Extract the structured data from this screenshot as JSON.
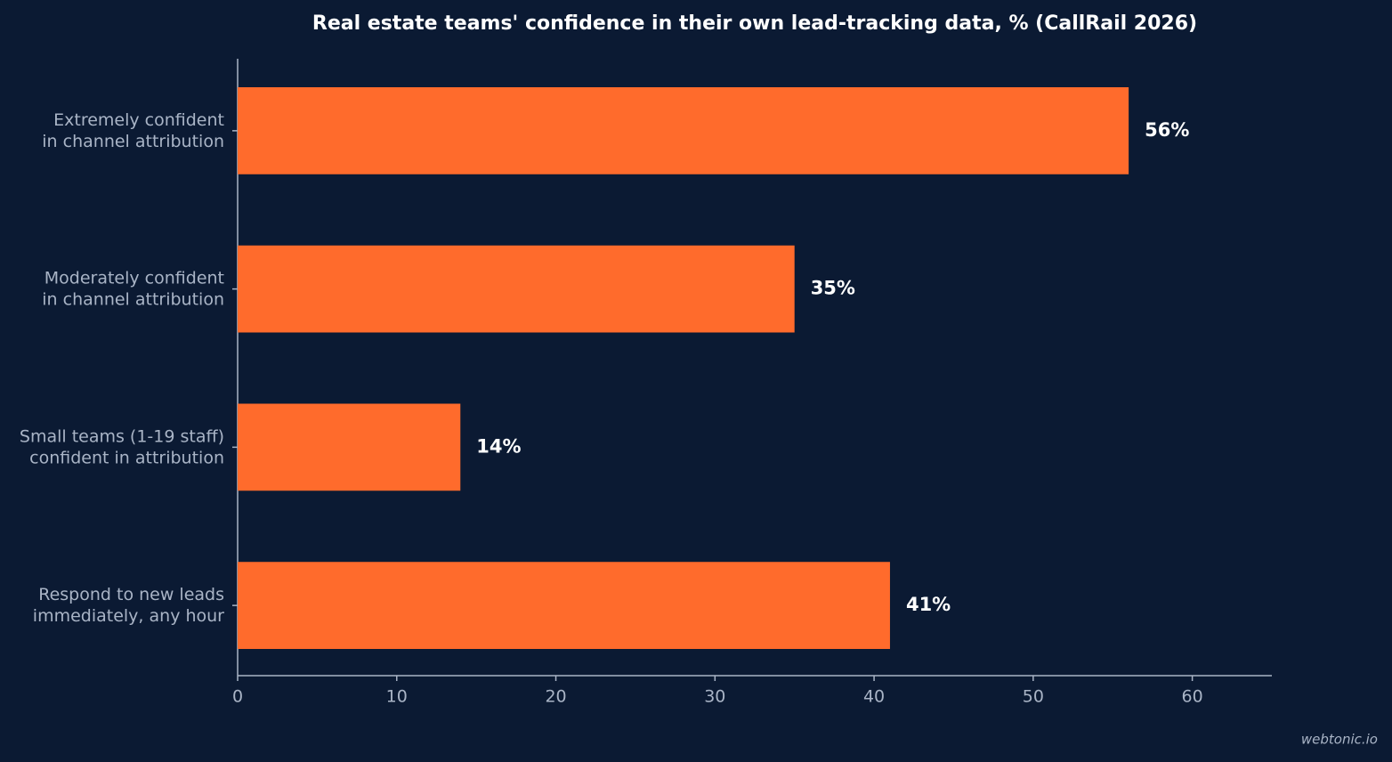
{
  "chart_data": {
    "type": "bar",
    "orientation": "horizontal",
    "title": "Real estate teams' confidence in their own lead-tracking data, % (CallRail 2026)",
    "categories": [
      [
        "Extremely confident",
        "in channel attribution"
      ],
      [
        "Moderately confident",
        "in channel attribution"
      ],
      [
        "Small teams (1-19 staff)",
        "confident in attribution"
      ],
      [
        "Respond to new leads",
        "immediately, any hour"
      ]
    ],
    "values": [
      56,
      35,
      14,
      41
    ],
    "value_labels": [
      "56%",
      "35%",
      "14%",
      "41%"
    ],
    "color": "#ff6b2c",
    "xlim": [
      0,
      65
    ],
    "xticks": [
      0,
      10,
      20,
      30,
      40,
      50,
      60
    ],
    "grid": false,
    "watermark": "webtonic.io"
  }
}
